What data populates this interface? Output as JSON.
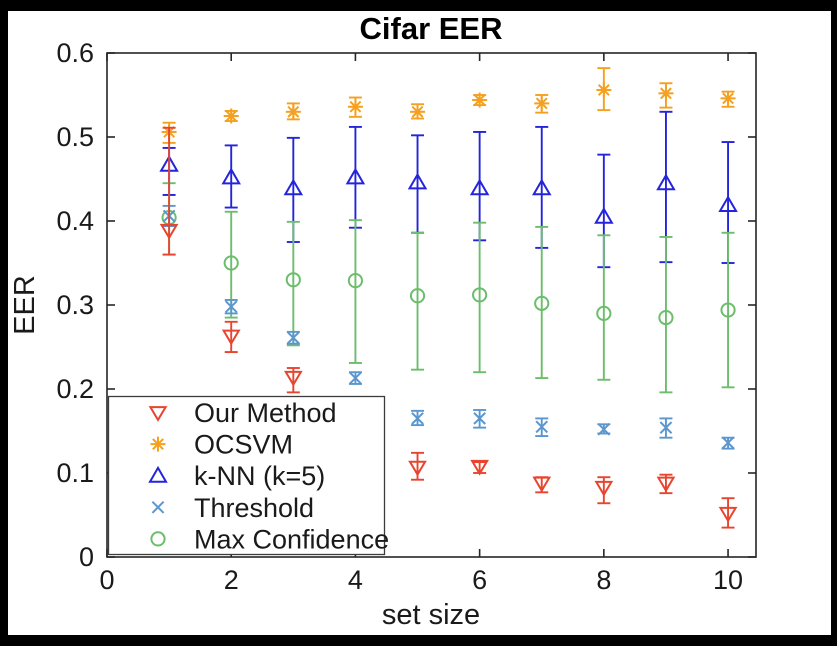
{
  "figure": {
    "background": "#ffffff",
    "border_color": "#000000",
    "frame_color": "#262626",
    "text_color": "#1a1a1a"
  },
  "chart_data": {
    "type": "scatter",
    "title": "Cifar EER",
    "xlabel": "set size",
    "ylabel": "EER",
    "xlim": [
      0,
      10.45
    ],
    "ylim": [
      0,
      0.6
    ],
    "xticks": [
      "0",
      "2",
      "4",
      "6",
      "8",
      "10"
    ],
    "yticks": [
      "0",
      "0.1",
      "0.2",
      "0.3",
      "0.4",
      "0.5",
      "0.6"
    ],
    "grid": false,
    "legend_position": "southwest",
    "error_bars": true,
    "occlusion_note": "Our Method point at set size 4 is hidden behind the legend box",
    "x": [
      1,
      2,
      3,
      4,
      5,
      6,
      7,
      8,
      9,
      10
    ],
    "series": [
      {
        "name": "Our Method",
        "marker": "triangle-down",
        "color": "#e8442e",
        "values": [
          0.389,
          0.263,
          0.214,
          null,
          0.107,
          0.108,
          0.088,
          0.083,
          0.088,
          0.052
        ],
        "err_lo": [
          0.36,
          0.244,
          0.196,
          null,
          0.092,
          0.1,
          0.077,
          0.064,
          0.076,
          0.035
        ],
        "err_hi": [
          0.511,
          0.28,
          0.225,
          null,
          0.124,
          0.113,
          0.095,
          0.095,
          0.098,
          0.07
        ]
      },
      {
        "name": "OCSVM",
        "marker": "asterisk",
        "color": "#f5a01e",
        "values": [
          0.506,
          0.525,
          0.53,
          0.536,
          0.53,
          0.544,
          0.54,
          0.556,
          0.552,
          0.546
        ],
        "err_lo": [
          0.493,
          0.519,
          0.521,
          0.524,
          0.522,
          0.538,
          0.529,
          0.532,
          0.535,
          0.536
        ],
        "err_hi": [
          0.517,
          0.531,
          0.54,
          0.547,
          0.539,
          0.55,
          0.55,
          0.582,
          0.564,
          0.554
        ]
      },
      {
        "name": "k-NN (k=5)",
        "marker": "triangle-up",
        "color": "#2424dc",
        "values": [
          0.467,
          0.452,
          0.439,
          0.452,
          0.446,
          0.439,
          0.439,
          0.405,
          0.445,
          0.419
        ],
        "err_lo": [
          0.431,
          0.416,
          0.375,
          0.392,
          0.386,
          0.377,
          0.368,
          0.345,
          0.351,
          0.35
        ],
        "err_hi": [
          0.487,
          0.49,
          0.499,
          0.512,
          0.502,
          0.506,
          0.512,
          0.479,
          0.53,
          0.494
        ]
      },
      {
        "name": "Threshold",
        "marker": "x",
        "color": "#5b97ce",
        "values": [
          0.406,
          0.298,
          0.261,
          0.213,
          0.165,
          0.165,
          0.155,
          0.152,
          0.154,
          0.136
        ],
        "err_lo": [
          0.394,
          0.29,
          0.254,
          0.206,
          0.157,
          0.154,
          0.144,
          0.147,
          0.142,
          0.129
        ],
        "err_hi": [
          0.418,
          0.306,
          0.268,
          0.22,
          0.174,
          0.175,
          0.165,
          0.158,
          0.165,
          0.142
        ]
      },
      {
        "name": "Max Confidence",
        "marker": "circle",
        "color": "#6cbd6c",
        "values": [
          0.404,
          0.35,
          0.33,
          0.329,
          0.311,
          0.312,
          0.302,
          0.29,
          0.285,
          0.294
        ],
        "err_lo": [
          0.36,
          0.285,
          0.252,
          0.231,
          0.223,
          0.22,
          0.213,
          0.211,
          0.196,
          0.202
        ],
        "err_hi": [
          0.445,
          0.411,
          0.399,
          0.401,
          0.386,
          0.398,
          0.393,
          0.383,
          0.381,
          0.386
        ]
      }
    ],
    "z_order": [
      1,
      2,
      4,
      3,
      0
    ]
  }
}
